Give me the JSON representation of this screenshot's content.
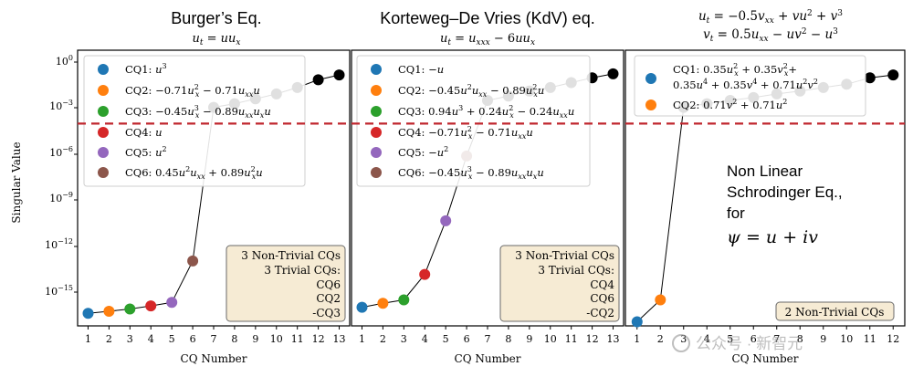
{
  "y_axis_label": "Singular Value",
  "x_axis_label": "CQ Number",
  "threshold_color": "#c0262d",
  "watermark": "公众号 · 新智元",
  "chart_data": [
    {
      "type": "scatter",
      "title": "Burger’s Eq.",
      "subtitle": "u_t = u u_x",
      "xlabel": "CQ Number",
      "ylabel": "Singular Value",
      "yscale": "log",
      "xlim": [
        0.5,
        13.5
      ],
      "ylim": [
        1e-16,
        10
      ],
      "x_ticks": [
        1,
        2,
        3,
        4,
        5,
        6,
        7,
        8,
        9,
        10,
        11,
        12,
        13
      ],
      "y_ticks": [
        {
          "value": 1,
          "label": "10^0"
        },
        {
          "value": 0.001,
          "label": "10^-3"
        },
        {
          "value": 1e-06,
          "label": "10^-6"
        },
        {
          "value": 1e-09,
          "label": "10^-9"
        },
        {
          "value": 1e-12,
          "label": "10^-12"
        },
        {
          "value": 1e-15,
          "label": "10^-15"
        }
      ],
      "threshold": 0.0003,
      "x": [
        1,
        2,
        3,
        4,
        5,
        6,
        7,
        8,
        9,
        10,
        11,
        12,
        13
      ],
      "y": [
        6e-16,
        8e-16,
        1.1e-15,
        1.7e-15,
        2.8e-15,
        1e-12,
        0.003,
        0.005,
        0.01,
        0.02,
        0.05,
        0.15,
        0.3
      ],
      "point_colors": [
        "#1f77b4",
        "#ff7f0e",
        "#2ca02c",
        "#d62728",
        "#9467bd",
        "#8c564b",
        "#000000",
        "#000000",
        "#000000",
        "#000000",
        "#000000",
        "#000000",
        "#000000"
      ],
      "legend_position": "top-left",
      "legend": [
        {
          "label": "CQ1: u^3",
          "color": "#1f77b4"
        },
        {
          "label": "CQ2: −0.71u_x^2 − 0.71u_xx u",
          "color": "#ff7f0e"
        },
        {
          "label": "CQ3: −0.45u_x^3 − 0.89u_xx u_x u",
          "color": "#2ca02c"
        },
        {
          "label": "CQ4: u",
          "color": "#d62728"
        },
        {
          "label": "CQ5: u^2",
          "color": "#9467bd"
        },
        {
          "label": "CQ6: 0.45u^2 u_xx + 0.89u_x^2 u",
          "color": "#8c564b"
        }
      ],
      "annotation": [
        "3 Non-Trivial CQs",
        "3 Trivial CQs:",
        "CQ6",
        "CQ2",
        "-CQ3"
      ]
    },
    {
      "type": "scatter",
      "title": "Korteweg–De Vries (KdV) eq.",
      "subtitle": "u_t = u_xxx − 6u u_x",
      "xlabel": "CQ Number",
      "yscale": "log",
      "xlim": [
        0.5,
        13.5
      ],
      "ylim": [
        1e-16,
        10
      ],
      "x_ticks": [
        1,
        2,
        3,
        4,
        5,
        6,
        7,
        8,
        9,
        10,
        11,
        12,
        13
      ],
      "threshold": 0.0003,
      "x": [
        1,
        2,
        3,
        4,
        5,
        6,
        7,
        8,
        9,
        10,
        11,
        12,
        13
      ],
      "y": [
        1.4e-15,
        2.5e-15,
        4e-15,
        1.5e-13,
        3e-10,
        3e-06,
        0.008,
        0.015,
        0.03,
        0.05,
        0.1,
        0.2,
        0.35
      ],
      "point_colors": [
        "#1f77b4",
        "#ff7f0e",
        "#2ca02c",
        "#d62728",
        "#9467bd",
        "#8c564b",
        "#000000",
        "#000000",
        "#000000",
        "#000000",
        "#000000",
        "#000000",
        "#000000"
      ],
      "legend_position": "top-left",
      "legend": [
        {
          "label": "CQ1: −u",
          "color": "#1f77b4"
        },
        {
          "label": "CQ2: −0.45u^2 u_xx − 0.89u_x^2 u",
          "color": "#ff7f0e"
        },
        {
          "label": "CQ3: 0.94u^3 + 0.24u_x^2 − 0.24u_xx u",
          "color": "#2ca02c"
        },
        {
          "label": "CQ4: −0.71u_x^2 − 0.71u_xx u",
          "color": "#d62728"
        },
        {
          "label": "CQ5: −u^2",
          "color": "#9467bd"
        },
        {
          "label": "CQ6: −0.45u_x^3 − 0.89u_xx u_x u",
          "color": "#8c564b"
        }
      ],
      "annotation": [
        "3 Non-Trivial CQs",
        "3 Trivial CQs:",
        "CQ4",
        "CQ6",
        "-CQ2"
      ]
    },
    {
      "type": "scatter",
      "title_lines": [
        "u_t = −0.5v_xx + vu^2 + v^3",
        "v_t = 0.5u_xx − uv^2 − u^3"
      ],
      "xlabel": "CQ Number",
      "yscale": "log",
      "xlim": [
        0.5,
        12.5
      ],
      "ylim": [
        1e-16,
        10
      ],
      "x_ticks": [
        1,
        2,
        3,
        4,
        5,
        6,
        7,
        8,
        9,
        10,
        11,
        12
      ],
      "threshold": 0.0003,
      "x": [
        1,
        2,
        3,
        4,
        5,
        6,
        7,
        8,
        9,
        10,
        11,
        12
      ],
      "y": [
        1.8e-16,
        4e-15,
        0.003,
        0.005,
        0.008,
        0.012,
        0.02,
        0.03,
        0.05,
        0.08,
        0.2,
        0.3
      ],
      "point_colors": [
        "#1f77b4",
        "#ff7f0e",
        "#000000",
        "#000000",
        "#000000",
        "#000000",
        "#000000",
        "#000000",
        "#000000",
        "#000000",
        "#000000",
        "#000000"
      ],
      "legend_position": "top-left",
      "legend": [
        {
          "label": "CQ1: 0.35u_x^2 + 0.35v_x^2 + 0.35u^4 + 0.35v^4 + 0.71u^2 v^2",
          "color": "#1f77b4"
        },
        {
          "label": "CQ2: 0.71v^2 + 0.71u^2",
          "color": "#ff7f0e"
        }
      ],
      "side_text": [
        "Non Linear",
        "Schrodinger Eq.,",
        "for",
        "ψ = u + iv"
      ],
      "annotation": [
        "2 Non-Trivial CQs"
      ]
    }
  ]
}
